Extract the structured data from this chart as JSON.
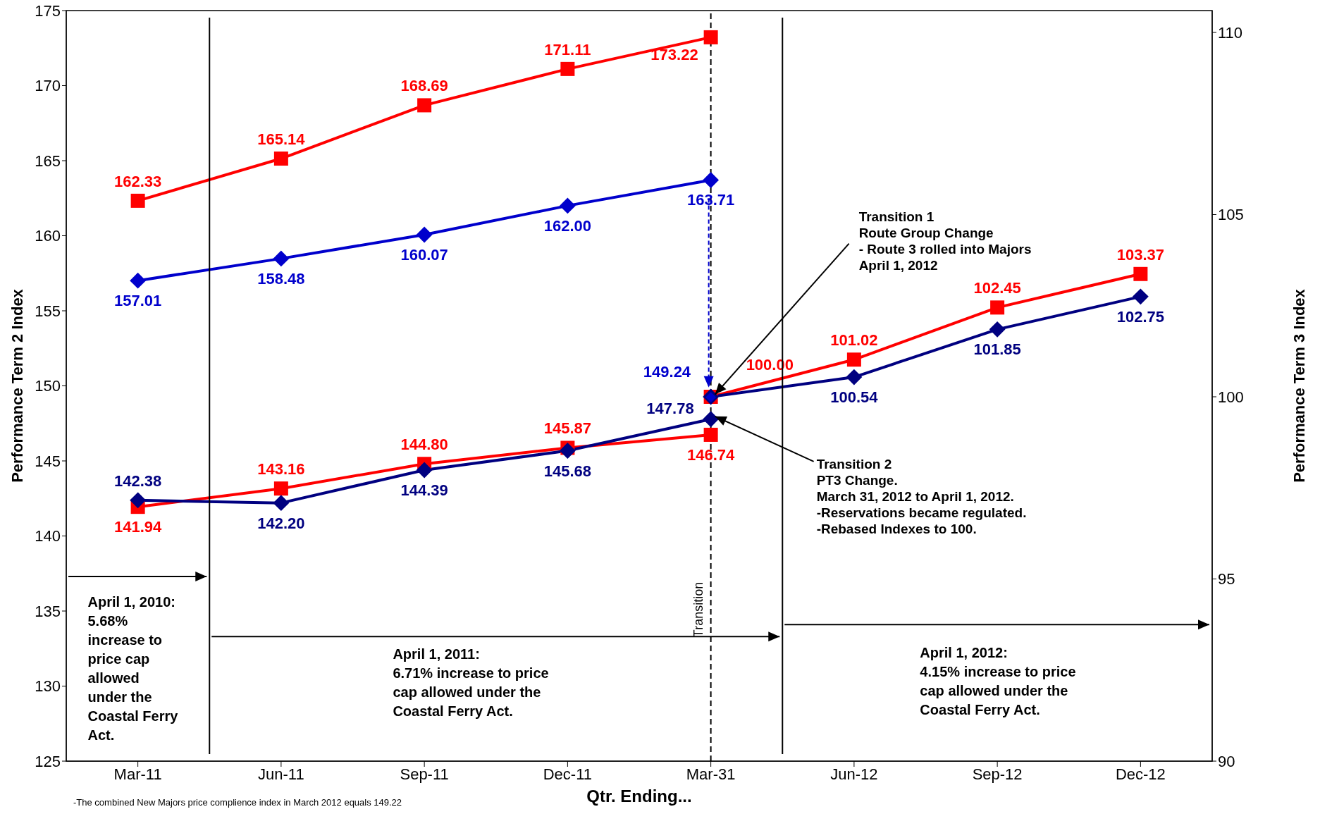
{
  "chart_data": {
    "type": "line",
    "xlabel": "Qtr. Ending...",
    "ylabel": "Performance Term 2 Index",
    "y2label": "Performance Term 3 Index",
    "categories": [
      "Mar-11",
      "Jun-11",
      "Sep-11",
      "Dec-11",
      "Mar-31",
      "Jun-12",
      "Sep-12",
      "Dec-12"
    ],
    "ylim": [
      125,
      175
    ],
    "yticks": [
      125,
      130,
      135,
      140,
      145,
      150,
      155,
      160,
      165,
      170,
      175
    ],
    "y2lim": [
      90,
      110.6
    ],
    "y2ticks": [
      90,
      95,
      100,
      105,
      110
    ],
    "grid": false,
    "legend": false,
    "line_style": "solid",
    "series": [
      {
        "color": "#ff0000",
        "marker": "square",
        "values": [
          162.33,
          165.14,
          168.69,
          171.11,
          173.22,
          null,
          null,
          null
        ],
        "value_labels": [
          "162.33",
          "165.14",
          "168.69",
          "171.11",
          "173.22",
          null,
          null,
          null
        ]
      },
      {
        "color": "#0000cc",
        "marker": "diamond",
        "values": [
          157.01,
          158.48,
          160.07,
          162.0,
          163.71,
          null,
          null,
          null
        ],
        "value_labels": [
          "157.01",
          "158.48",
          "160.07",
          "162.00",
          "163.71",
          null,
          null,
          null
        ]
      },
      {
        "color": "#ff0000",
        "marker": "square",
        "values": [
          141.94,
          143.16,
          144.8,
          145.87,
          146.74,
          null,
          null,
          null
        ],
        "value_labels": [
          "141.94",
          "143.16",
          "144.80",
          "145.87",
          "146.74",
          null,
          null,
          null
        ]
      },
      {
        "color": "#000080",
        "marker": "diamond",
        "values": [
          142.38,
          142.2,
          144.39,
          145.68,
          147.78,
          null,
          null,
          null
        ],
        "value_labels": [
          "142.38",
          "142.20",
          "144.39",
          "145.68",
          "147.78",
          null,
          null,
          null
        ]
      },
      {
        "color": "#ff0000",
        "marker": "square",
        "axis": "y2",
        "values": [
          null,
          null,
          null,
          null,
          100.0,
          101.02,
          102.45,
          103.37
        ],
        "value_labels": [
          null,
          null,
          null,
          null,
          "100.00",
          "101.02",
          "102.45",
          "103.37"
        ]
      },
      {
        "color": "#000080",
        "marker": "diamond",
        "axis": "y2",
        "values": [
          null,
          null,
          null,
          null,
          100.0,
          100.54,
          101.85,
          102.75
        ],
        "value_labels": [
          null,
          null,
          null,
          null,
          null,
          "100.54",
          "101.85",
          "102.75"
        ]
      },
      {
        "type": "scatter",
        "color": "#0000cc",
        "marker": "diamond",
        "x": [
          "Mar-31"
        ],
        "values": [
          149.24
        ],
        "value_labels": [
          "149.24"
        ]
      }
    ],
    "ref_lines": [
      {
        "axis": "x",
        "value": "Mar-31",
        "label": "Transition",
        "color": "#000000",
        "line_style": "dashed"
      }
    ],
    "annotations": [
      "April 1, 2010:\n5.68%\nincrease to\nprice cap\nallowed\nunder the\nCoastal Ferry\nAct.",
      "April 1, 2011:\n6.71% increase to price\ncap allowed under the\nCoastal Ferry Act.",
      "April 1, 2012:\n4.15% increase to price\ncap allowed under the\nCoastal Ferry Act.",
      {
        "text": "Transition 1\nRoute Group Change\n- Route 3 rolled into Majors\nApril 1, 2012",
        "x": "Mar-31",
        "y": 149.24
      },
      {
        "text": "Transition 2\nPT3 Change.\nMarch 31, 2012 to April 1, 2012.\n-Reservations became regulated.\n-Rebased Indexes to 100.",
        "x": "Mar-31",
        "y": 147.78
      },
      "-The combined New Majors price complience index in March 2012 equals 149.22"
    ]
  }
}
